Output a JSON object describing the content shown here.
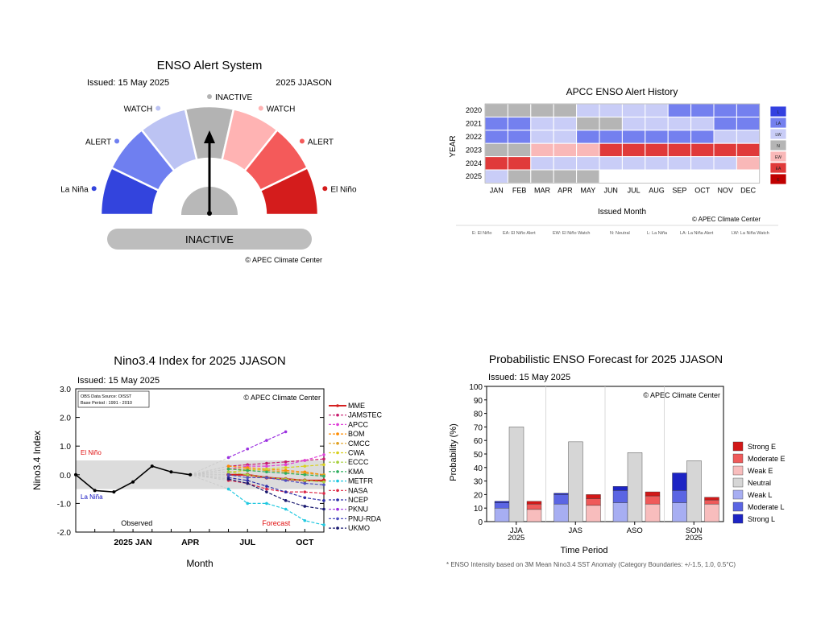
{
  "chart_data": [
    {
      "type": "gauge",
      "title": "ENSO Alert System",
      "issued": "Issued: 15 May 2025",
      "period": "2025 JJASON",
      "segments": [
        {
          "label": "La Niña",
          "color": "#3344dd"
        },
        {
          "label": "ALERT",
          "color": "#6f7ff0"
        },
        {
          "label": "WATCH",
          "color": "#bcc3f3"
        },
        {
          "label": "INACTIVE",
          "color": "#b3b3b3"
        },
        {
          "label": "WATCH",
          "color": "#ffb3b3"
        },
        {
          "label": "ALERT",
          "color": "#f45a5a"
        },
        {
          "label": "El Niño",
          "color": "#d41c1c"
        }
      ],
      "pointer_segment_index": 3,
      "status": "INACTIVE",
      "copyright": "© APEC Climate Center"
    },
    {
      "type": "heatmap",
      "title": "APCC ENSO Alert History",
      "xlabel": "Issued Month",
      "ylabel": "YEAR",
      "months": [
        "JAN",
        "FEB",
        "MAR",
        "APR",
        "MAY",
        "JUN",
        "JUL",
        "AUG",
        "SEP",
        "OCT",
        "NOV",
        "DEC"
      ],
      "years": [
        "2020",
        "2021",
        "2022",
        "2023",
        "2024",
        "2025"
      ],
      "grid": [
        [
          "N",
          "N",
          "N",
          "N",
          "LW",
          "LW",
          "LW",
          "LW",
          "LA",
          "LA",
          "LA",
          "LA"
        ],
        [
          "LA",
          "LA",
          "LW",
          "LW",
          "N",
          "N",
          "LW",
          "LW",
          "LW",
          "LW",
          "LA",
          "LA"
        ],
        [
          "LA",
          "LA",
          "LW",
          "LW",
          "LA",
          "LA",
          "LA",
          "LA",
          "LA",
          "LA",
          "LW",
          "LW"
        ],
        [
          "N",
          "N",
          "EW",
          "EW",
          "EW",
          "EA",
          "EA",
          "EA",
          "EA",
          "EA",
          "EA",
          "EA"
        ],
        [
          "EA",
          "EA",
          "LW",
          "LW",
          "LW",
          "LW",
          "LW",
          "LW",
          "LW",
          "LW",
          "LW",
          "EW"
        ],
        [
          "LW",
          "N",
          "N",
          "N",
          "N",
          "",
          "",
          "",
          "",
          "",
          "",
          ""
        ]
      ],
      "legend": [
        "L",
        "LA",
        "LW",
        "N",
        "EW",
        "EA",
        "E"
      ],
      "colors": {
        "E": "#c00000",
        "EA": "#e03a3a",
        "EW": "#f9b8b8",
        "N": "#b5b5b5",
        "LW": "#c9cdf7",
        "LA": "#7480ef",
        "L": "#3340e0",
        "": "#ffffff"
      },
      "copyright": "© APEC Climate Center",
      "footnotes": [
        "E: El Niño",
        "EA: El Niño Alert",
        "EW: El Niño Watch",
        "N: Neutral",
        "L: La Niña",
        "LA: La Niña Alert",
        "LW: La Niña Watch"
      ]
    },
    {
      "type": "line",
      "title": "Nino3.4 Index for 2025 JJASON",
      "issued": "Issued: 15 May 2025",
      "xlabel": "Month",
      "ylabel": "Nino3.4 Index",
      "ylim": [
        -2.0,
        3.0
      ],
      "yticks": [
        "3.0",
        "2.0",
        "1.0",
        "0.0",
        "-1.0",
        "-2.0"
      ],
      "xticks": [
        {
          "m": 2,
          "label": "2025 JAN"
        },
        {
          "m": 5,
          "label": "APR"
        },
        {
          "m": 8,
          "label": "JUL"
        },
        {
          "m": 11,
          "label": "OCT"
        }
      ],
      "xlim": [
        -1,
        12
      ],
      "neutral_band": [
        -0.5,
        0.5
      ],
      "source_box": [
        "OBS Data Source: OISST",
        "Base Period : 1991 - 2010"
      ],
      "copyright": "© APEC Climate Center",
      "elnino_label": "El Niño",
      "lanina_label": "La Niña",
      "observed_label": "Observed",
      "forecast_label": "Forecast",
      "observed": {
        "x": [
          -1,
          0,
          1,
          2,
          3,
          4,
          5
        ],
        "y": [
          0.0,
          -0.55,
          -0.6,
          -0.25,
          0.3,
          0.1,
          0.0
        ]
      },
      "forecast_months": [
        7,
        8,
        9,
        10,
        11,
        12
      ],
      "series": [
        {
          "name": "MME",
          "color": "#d42020",
          "values": [
            0.0,
            0.0,
            -0.1,
            -0.15,
            -0.2,
            -0.2
          ]
        },
        {
          "name": "JAMSTEC",
          "color": "#c81d6e",
          "values": [
            0.3,
            0.35,
            0.4,
            0.45,
            0.5,
            0.55
          ]
        },
        {
          "name": "APCC",
          "color": "#e040d8",
          "values": [
            0.2,
            0.3,
            0.3,
            0.35,
            0.5,
            0.7
          ]
        },
        {
          "name": "BOM",
          "color": "#ff8c00",
          "values": [
            0.3,
            0.25,
            0.2,
            0.15,
            0.1,
            0.0
          ]
        },
        {
          "name": "CMCC",
          "color": "#e0a020",
          "values": [
            0.2,
            0.2,
            0.15,
            0.1,
            0.05,
            0.0
          ]
        },
        {
          "name": "CWA",
          "color": "#d8d020",
          "values": [
            0.1,
            0.15,
            0.2,
            0.25,
            0.3,
            0.35
          ]
        },
        {
          "name": "ECCC",
          "color": "#a8d040",
          "values": [
            0.1,
            0.0,
            -0.1,
            -0.15,
            -0.2,
            -0.25
          ]
        },
        {
          "name": "KMA",
          "color": "#30b060",
          "values": [
            0.2,
            0.15,
            0.1,
            0.05,
            0.0,
            -0.05
          ]
        },
        {
          "name": "METFR",
          "color": "#20c8e0",
          "values": [
            -0.5,
            -1.0,
            -1.0,
            -1.2,
            -1.6,
            -1.75
          ]
        },
        {
          "name": "NASA",
          "color": "#dd2a48",
          "values": [
            -0.2,
            -0.3,
            -0.5,
            -0.6,
            -0.6,
            -0.65
          ]
        },
        {
          "name": "NCEP",
          "color": "#2c2ca8",
          "values": [
            -0.1,
            -0.2,
            -0.4,
            -0.6,
            -0.8,
            -0.9
          ]
        },
        {
          "name": "PKNU",
          "color": "#9b30e0",
          "values": [
            0.6,
            0.9,
            1.2,
            1.5,
            null,
            null
          ]
        },
        {
          "name": "PNU-RDA",
          "color": "#5050c0",
          "values": [
            0.0,
            -0.1,
            -0.1,
            -0.2,
            -0.3,
            -0.35
          ]
        },
        {
          "name": "UKMO",
          "color": "#1a1a70",
          "values": [
            -0.15,
            -0.3,
            -0.6,
            -0.9,
            -1.1,
            -1.2
          ]
        }
      ]
    },
    {
      "type": "bar",
      "title": "Probabilistic ENSO Forecast for 2025 JJASON",
      "issued": "Issued: 15 May 2025",
      "xlabel": "Time Period",
      "ylabel": "Probability (%)",
      "ylim": [
        0,
        100
      ],
      "yticks": [
        "100",
        "90",
        "80",
        "70",
        "60",
        "50",
        "40",
        "30",
        "20",
        "10",
        "0"
      ],
      "categories": [
        "JJA\n2025",
        "JAS",
        "ASO",
        "SON\n2025"
      ],
      "copyright": "© APEC Climate Center",
      "legend": [
        {
          "name": "Strong E",
          "color": "#d21818"
        },
        {
          "name": "Moderate E",
          "color": "#ef5a5a"
        },
        {
          "name": "Weak E",
          "color": "#f8bdbd"
        },
        {
          "name": "Neutral",
          "color": "#d6d6d6"
        },
        {
          "name": "Weak L",
          "color": "#a7aef2"
        },
        {
          "name": "Moderate L",
          "color": "#5b65e3"
        },
        {
          "name": "Strong L",
          "color": "#1d24c4"
        }
      ],
      "la_nina_stack": [
        {
          "weak": 10,
          "moderate": 4,
          "strong": 1
        },
        {
          "weak": 13,
          "moderate": 7,
          "strong": 1
        },
        {
          "weak": 14,
          "moderate": 9,
          "strong": 3
        },
        {
          "weak": 14,
          "moderate": 9,
          "strong": 13
        }
      ],
      "neutral": [
        70,
        59,
        51,
        45
      ],
      "el_nino_stack": [
        {
          "weak": 9,
          "moderate": 4,
          "strong": 2
        },
        {
          "weak": 12,
          "moderate": 5,
          "strong": 3
        },
        {
          "weak": 13,
          "moderate": 6,
          "strong": 3
        },
        {
          "weak": 13,
          "moderate": 3,
          "strong": 2
        }
      ],
      "footnote": "* ENSO Intensity based on 3M Mean Nino3.4 SST Anomaly (Category Boundaries: +/-1.5, 1.0, 0.5°C)"
    }
  ]
}
